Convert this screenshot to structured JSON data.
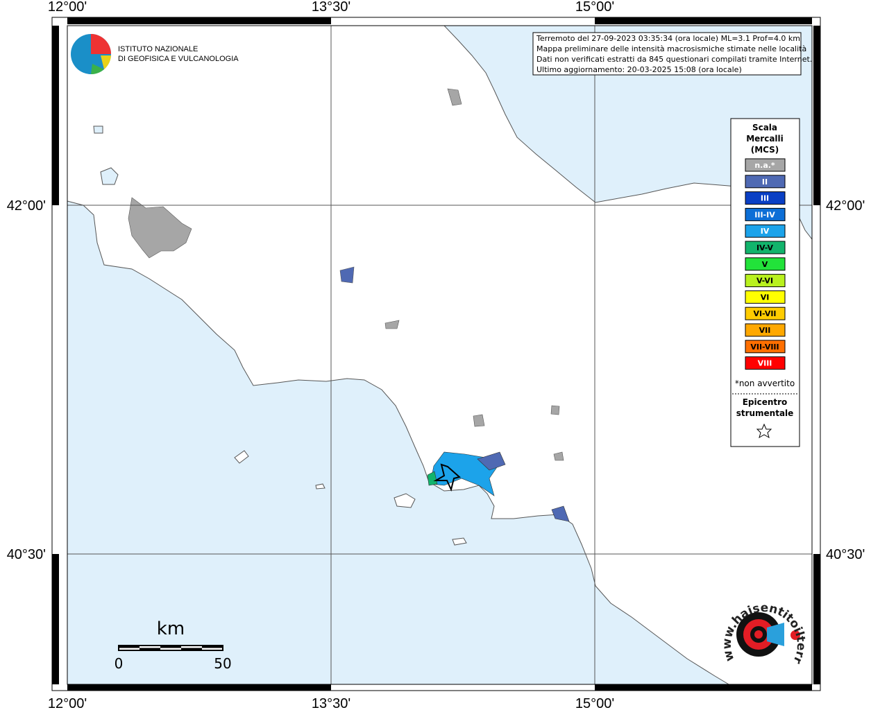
{
  "coordinates": {
    "longitudes": [
      "12°00'",
      "13°30'",
      "15°00'"
    ],
    "latitudes": [
      "42°00'",
      "40°30'"
    ]
  },
  "logo": {
    "line1": "ISTITUTO NAZIONALE",
    "line2": "DI GEOFISICA E VULCANOLOGIA"
  },
  "info": [
    "Terremoto del 27-09-2023 03:35:34 (ora locale) ML=3.1 Prof=4.0 km",
    "Mappa preliminare delle intensità macrosismiche stimate nelle località",
    "Dati non verificati estratti da 845 questionari compilati tramite Internet.",
    "Ultimo aggiornamento: 20-03-2025 15:08 (ora locale)"
  ],
  "legend": {
    "title": [
      "Scala",
      "Mercalli",
      "(MCS)"
    ],
    "items": [
      {
        "label": "n.a.*",
        "color": "#a6a6a6",
        "text_color": "#ffffff"
      },
      {
        "label": "II",
        "color": "#4f69b3",
        "text_color": "#ffffff"
      },
      {
        "label": "III",
        "color": "#0a3fc4",
        "text_color": "#ffffff"
      },
      {
        "label": "III-IV",
        "color": "#0c6ed6",
        "text_color": "#ffffff"
      },
      {
        "label": "IV",
        "color": "#1ca3ea",
        "text_color": "#ffffff"
      },
      {
        "label": "IV-V",
        "color": "#12b46c",
        "text_color": "#000000"
      },
      {
        "label": "V",
        "color": "#22e23a",
        "text_color": "#000000"
      },
      {
        "label": "V-VI",
        "color": "#b9f11e",
        "text_color": "#000000"
      },
      {
        "label": "VI",
        "color": "#ffff00",
        "text_color": "#000000"
      },
      {
        "label": "VI-VII",
        "color": "#ffcc00",
        "text_color": "#000000"
      },
      {
        "label": "VII",
        "color": "#ffa800",
        "text_color": "#000000"
      },
      {
        "label": "VII-VIII",
        "color": "#ff6f00",
        "text_color": "#000000"
      },
      {
        "label": "VIII",
        "color": "#ff0000",
        "text_color": "#ffffff"
      }
    ],
    "note": "*non avvertito",
    "epicentre": [
      "Epicentro",
      "strumentale"
    ]
  },
  "scale_bar": {
    "unit": "km",
    "start": "0",
    "end": "50"
  },
  "badge": "www.haisentitoilterremoto.it"
}
